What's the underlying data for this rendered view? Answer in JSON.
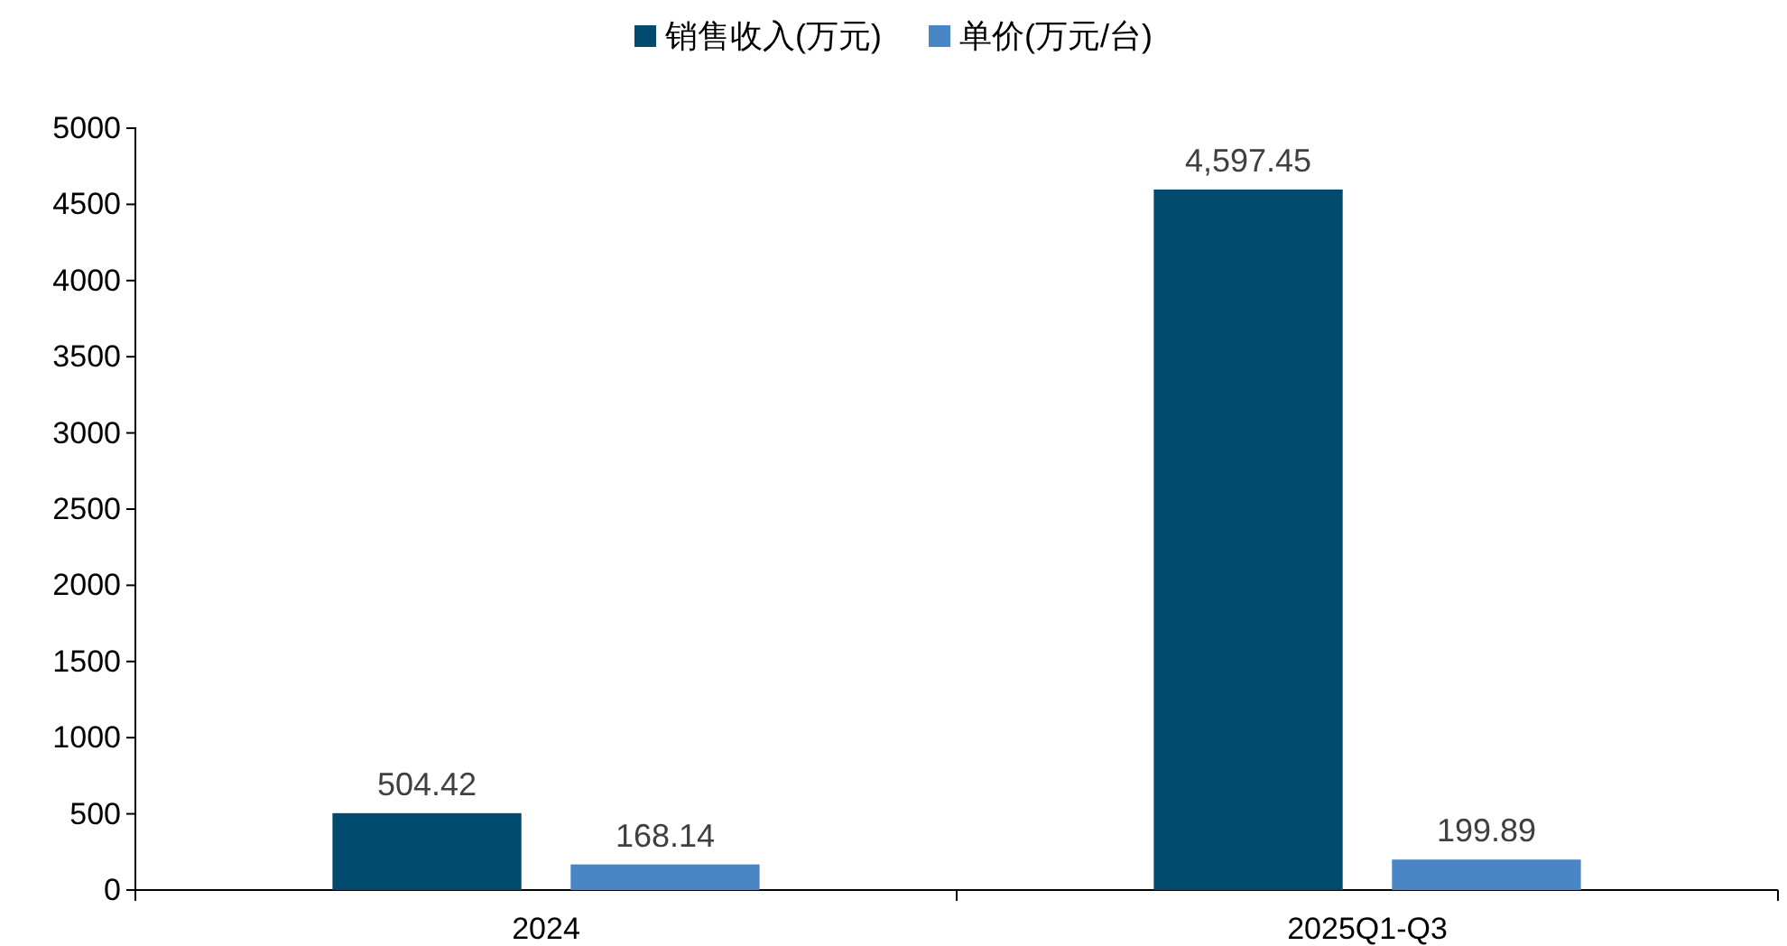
{
  "chart_data": {
    "type": "bar",
    "categories": [
      "2024",
      "2025Q1-Q3"
    ],
    "series": [
      {
        "name": "销售收入(万元)",
        "color": "#004a6e",
        "values": [
          504.42,
          4597.45
        ],
        "value_labels": [
          "504.42",
          "4,597.45"
        ]
      },
      {
        "name": "单价(万元/台)",
        "color": "#4a86c5",
        "values": [
          168.14,
          199.89
        ],
        "value_labels": [
          "168.14",
          "199.89"
        ]
      }
    ],
    "ylim": [
      0,
      5000
    ],
    "yticks": [
      0,
      500,
      1000,
      1500,
      2000,
      2500,
      3000,
      3500,
      4000,
      4500,
      5000
    ],
    "grid": false,
    "legend": "top"
  }
}
